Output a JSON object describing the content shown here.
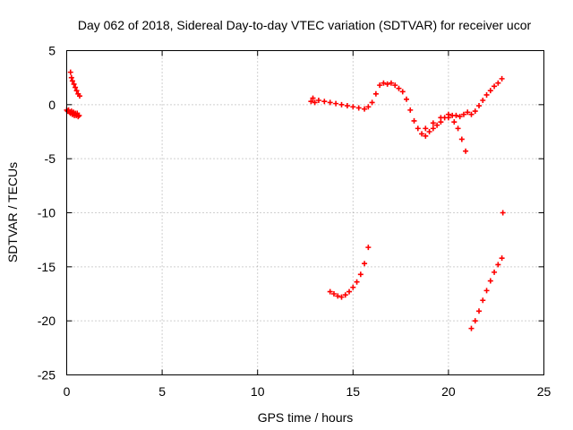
{
  "chart_data": {
    "type": "scatter",
    "title": "Day 062 of 2018, Sidereal Day-to-day VTEC variation (SDTVAR) for receiver ucor",
    "xlabel": "GPS time / hours",
    "ylabel": "SDTVAR / TECUs",
    "xlim": [
      0,
      25
    ],
    "ylim": [
      -25,
      5
    ],
    "xticks": [
      "0",
      "5",
      "10",
      "15",
      "20",
      "25"
    ],
    "yticks": [
      "5",
      "0",
      "-5",
      "-10",
      "-15",
      "-20",
      "-25"
    ],
    "grid": true,
    "marker": "plus",
    "color": "#ff0000",
    "series": [
      {
        "values": [
          {
            "x": 0.2,
            "y": 3.0
          },
          {
            "x": 0.25,
            "y": 2.5
          },
          {
            "x": 0.3,
            "y": 2.2
          },
          {
            "x": 0.38,
            "y": 1.9
          },
          {
            "x": 0.45,
            "y": 1.6
          },
          {
            "x": 0.52,
            "y": 1.3
          },
          {
            "x": 0.6,
            "y": 1.0
          },
          {
            "x": 0.68,
            "y": 0.8
          },
          {
            "x": 0.0,
            "y": -0.5
          },
          {
            "x": 0.05,
            "y": -0.6
          },
          {
            "x": 0.1,
            "y": -0.5
          },
          {
            "x": 0.15,
            "y": -0.7
          },
          {
            "x": 0.2,
            "y": -0.8
          },
          {
            "x": 0.25,
            "y": -0.6
          },
          {
            "x": 0.3,
            "y": -0.9
          },
          {
            "x": 0.35,
            "y": -0.7
          },
          {
            "x": 0.4,
            "y": -1.0
          },
          {
            "x": 0.45,
            "y": -0.8
          },
          {
            "x": 0.5,
            "y": -1.0
          },
          {
            "x": 0.55,
            "y": -0.8
          },
          {
            "x": 0.6,
            "y": -1.1
          },
          {
            "x": 0.65,
            "y": -1.0
          },
          {
            "x": 12.8,
            "y": 0.3
          },
          {
            "x": 12.9,
            "y": 0.6
          },
          {
            "x": 13.0,
            "y": 0.2
          },
          {
            "x": 13.2,
            "y": 0.4
          },
          {
            "x": 13.5,
            "y": 0.3
          },
          {
            "x": 13.8,
            "y": 0.2
          },
          {
            "x": 14.1,
            "y": 0.1
          },
          {
            "x": 14.4,
            "y": 0.0
          },
          {
            "x": 14.7,
            "y": -0.1
          },
          {
            "x": 15.0,
            "y": -0.2
          },
          {
            "x": 15.3,
            "y": -0.3
          },
          {
            "x": 15.6,
            "y": -0.4
          },
          {
            "x": 15.8,
            "y": -0.2
          },
          {
            "x": 16.0,
            "y": 0.2
          },
          {
            "x": 16.2,
            "y": 1.0
          },
          {
            "x": 16.4,
            "y": 1.8
          },
          {
            "x": 16.6,
            "y": 2.0
          },
          {
            "x": 16.8,
            "y": 1.9
          },
          {
            "x": 17.0,
            "y": 2.0
          },
          {
            "x": 17.2,
            "y": 1.8
          },
          {
            "x": 17.4,
            "y": 1.5
          },
          {
            "x": 17.6,
            "y": 1.2
          },
          {
            "x": 17.8,
            "y": 0.5
          },
          {
            "x": 18.0,
            "y": -0.5
          },
          {
            "x": 18.2,
            "y": -1.5
          },
          {
            "x": 18.4,
            "y": -2.2
          },
          {
            "x": 18.6,
            "y": -2.7
          },
          {
            "x": 18.8,
            "y": -2.9
          },
          {
            "x": 19.0,
            "y": -2.5
          },
          {
            "x": 19.2,
            "y": -2.2
          },
          {
            "x": 19.4,
            "y": -1.9
          },
          {
            "x": 19.6,
            "y": -1.6
          },
          {
            "x": 19.8,
            "y": -1.2
          },
          {
            "x": 20.0,
            "y": -0.9
          },
          {
            "x": 20.2,
            "y": -1.0
          },
          {
            "x": 20.4,
            "y": -1.0
          },
          {
            "x": 20.6,
            "y": -1.1
          },
          {
            "x": 20.8,
            "y": -0.9
          },
          {
            "x": 21.0,
            "y": -0.7
          },
          {
            "x": 21.2,
            "y": -0.9
          },
          {
            "x": 21.4,
            "y": -0.6
          },
          {
            "x": 21.6,
            "y": -0.1
          },
          {
            "x": 21.8,
            "y": 0.4
          },
          {
            "x": 22.0,
            "y": 0.9
          },
          {
            "x": 22.2,
            "y": 1.3
          },
          {
            "x": 22.4,
            "y": 1.7
          },
          {
            "x": 22.6,
            "y": 2.0
          },
          {
            "x": 22.8,
            "y": 2.4
          },
          {
            "x": 18.8,
            "y": -2.2
          },
          {
            "x": 19.2,
            "y": -1.7
          },
          {
            "x": 19.6,
            "y": -1.2
          },
          {
            "x": 20.0,
            "y": -1.2
          },
          {
            "x": 20.3,
            "y": -1.6
          },
          {
            "x": 20.5,
            "y": -2.2
          },
          {
            "x": 20.7,
            "y": -3.2
          },
          {
            "x": 20.9,
            "y": -4.3
          },
          {
            "x": 13.8,
            "y": -17.3
          },
          {
            "x": 14.0,
            "y": -17.5
          },
          {
            "x": 14.2,
            "y": -17.7
          },
          {
            "x": 14.4,
            "y": -17.8
          },
          {
            "x": 14.6,
            "y": -17.6
          },
          {
            "x": 14.8,
            "y": -17.3
          },
          {
            "x": 15.0,
            "y": -16.9
          },
          {
            "x": 15.2,
            "y": -16.4
          },
          {
            "x": 15.4,
            "y": -15.7
          },
          {
            "x": 15.6,
            "y": -14.7
          },
          {
            "x": 15.8,
            "y": -13.2
          },
          {
            "x": 21.2,
            "y": -20.7
          },
          {
            "x": 21.4,
            "y": -20.0
          },
          {
            "x": 21.6,
            "y": -19.1
          },
          {
            "x": 21.8,
            "y": -18.1
          },
          {
            "x": 22.0,
            "y": -17.2
          },
          {
            "x": 22.2,
            "y": -16.3
          },
          {
            "x": 22.4,
            "y": -15.5
          },
          {
            "x": 22.6,
            "y": -14.8
          },
          {
            "x": 22.8,
            "y": -14.2
          },
          {
            "x": 22.85,
            "y": -10.0
          }
        ]
      }
    ]
  }
}
